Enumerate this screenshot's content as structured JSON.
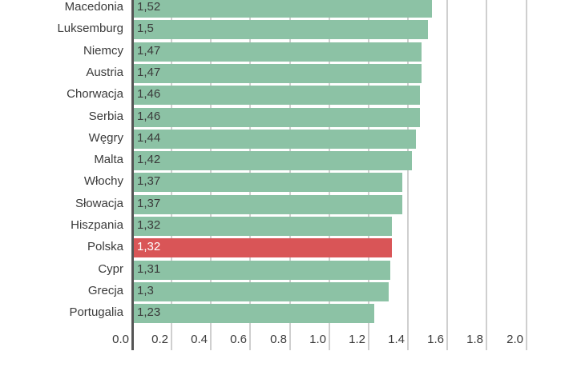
{
  "chart_data": {
    "type": "bar",
    "orientation": "horizontal",
    "title": "",
    "xlabel": "",
    "ylabel": "",
    "xlim": [
      0,
      2.0
    ],
    "grid": true,
    "categories": [
      "Macedonia",
      "Luksemburg",
      "Niemcy",
      "Austria",
      "Chorwacja",
      "Serbia",
      "Węgry",
      "Malta",
      "Włochy",
      "Słowacja",
      "Hiszpania",
      "Polska",
      "Cypr",
      "Grecja",
      "Portugalia"
    ],
    "values": [
      1.52,
      1.5,
      1.47,
      1.47,
      1.46,
      1.46,
      1.44,
      1.42,
      1.37,
      1.37,
      1.32,
      1.32,
      1.31,
      1.3,
      1.23
    ],
    "value_labels": [
      "1,52",
      "1,5",
      "1,47",
      "1,47",
      "1,46",
      "1,46",
      "1,44",
      "1,42",
      "1,37",
      "1,37",
      "1,32",
      "1,32",
      "1,31",
      "1,3",
      "1,23"
    ],
    "highlight": "Polska",
    "x_ticks": [
      "0.0",
      "0.2",
      "0.4",
      "0.6",
      "0.8",
      "1.0",
      "1.2",
      "1.4",
      "1.6",
      "1.8",
      "2.0"
    ],
    "colors": {
      "bar": "#8cc2a5",
      "highlight": "#d95557",
      "grid": "#cfcfcf",
      "axis": "#555555"
    }
  }
}
